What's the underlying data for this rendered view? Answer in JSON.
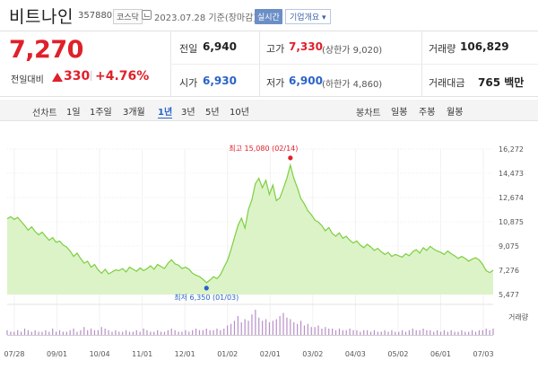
{
  "header": {
    "stock_name": "비트나인",
    "stock_code": "357880",
    "market": "코스닥",
    "date_text": "2023.07.28 기준(장마감)",
    "realtime_label": "실시간",
    "overview_label": "기업개요 ▾"
  },
  "price": {
    "current": "7,270",
    "change_label": "전일대비",
    "change_value": "330",
    "change_pct": "+4.76%"
  },
  "stats": {
    "prev_close_label": "전일",
    "prev_close": "6,940",
    "high_label": "고가",
    "high": "7,330",
    "upper_limit": "(상한가 9,020)",
    "volume_label": "거래량",
    "volume": "106,829",
    "open_label": "시가",
    "open": "6,930",
    "low_label": "저가",
    "low": "6,900",
    "lower_limit": "(하한가 4,860)",
    "value_label": "거래대금",
    "value": "765 백만"
  },
  "period_bar": {
    "line_chart_label": "선차트",
    "periods": [
      "1일",
      "1주일",
      "3개월",
      "1년",
      "3년",
      "5년",
      "10년"
    ],
    "active_period": "1년",
    "candle_label": "봉차트",
    "candles": [
      "일봉",
      "주봉",
      "월봉"
    ]
  },
  "colors": {
    "up": "#e0202a",
    "down": "#2a62c8",
    "line": "#7ccf3e",
    "fill": "#dcf3c8"
  },
  "chart_data": {
    "type": "area",
    "x_tick_labels": [
      "07/28",
      "09/01",
      "10/04",
      "11/01",
      "12/01",
      "01/02",
      "02/01",
      "03/02",
      "04/03",
      "05/02",
      "06/01",
      "07/03"
    ],
    "y_ticks": [
      16272,
      14473,
      12674,
      10875,
      9075,
      7276,
      5477
    ],
    "y_tick_labels": [
      "16,272",
      "14,473",
      "12,674",
      "10,875",
      "9,075",
      "7,276",
      "5,477"
    ],
    "ylim": [
      5477,
      16272
    ],
    "annotations": {
      "max_label": "최고 15,080 (02/14)",
      "min_label": "최저 6,350 (01/03)"
    },
    "max": {
      "date": "02/14",
      "value": 15080
    },
    "min": {
      "date": "01/03",
      "value": 6350
    },
    "volume_label": "거래량",
    "series": [
      {
        "values": [
          11100,
          11250,
          11050,
          11200,
          10900,
          10600,
          10250,
          10500,
          10150,
          9900,
          10100,
          9800,
          9500,
          9700,
          9350,
          9450,
          9150,
          9000,
          8700,
          8300,
          8550,
          8150,
          7800,
          7950,
          7500,
          7700,
          7300,
          7050,
          7350,
          7000,
          7150,
          7300,
          7250,
          7400,
          7150,
          7500,
          7350,
          7200,
          7450,
          7250,
          7400,
          7600,
          7350,
          7700,
          7550,
          7400,
          7800,
          8050,
          7750,
          7650,
          7400,
          7500,
          7350,
          7050,
          6900,
          6800,
          6600,
          6350,
          6550,
          6800,
          6650,
          6950,
          7500,
          8000,
          8800,
          9700,
          10600,
          11150,
          10400,
          11800,
          12500,
          13700,
          14100,
          13400,
          13950,
          12900,
          13600,
          12450,
          12650,
          13350,
          14100,
          15080,
          14100,
          13400,
          12600,
          12200,
          11700,
          11400,
          11000,
          10850,
          10600,
          10200,
          10450,
          10000,
          9800,
          10050,
          9650,
          9800,
          9500,
          9300,
          9450,
          9150,
          8950,
          9200,
          9000,
          8750,
          8900,
          8650,
          8450,
          8600,
          8300,
          8450,
          8350,
          8250,
          8500,
          8350,
          8650,
          8800,
          8550,
          8950,
          8750,
          9050,
          8850,
          8700,
          8600,
          8450,
          8700,
          8500,
          8350,
          8150,
          8300,
          8150,
          7950,
          8100,
          8200,
          8050,
          7700,
          7250,
          7100,
          7270
        ]
      }
    ],
    "volumes": [
      3,
      2,
      2,
      3,
      2,
      4,
      3,
      2,
      3,
      2,
      2,
      3,
      2,
      4,
      2,
      3,
      2,
      2,
      3,
      4,
      2,
      3,
      5,
      3,
      4,
      3,
      3,
      5,
      4,
      3,
      2,
      3,
      2,
      2,
      3,
      2,
      2,
      3,
      2,
      4,
      3,
      2,
      2,
      3,
      2,
      2,
      3,
      4,
      3,
      2,
      2,
      3,
      2,
      3,
      4,
      3,
      3,
      4,
      3,
      3,
      4,
      3,
      4,
      6,
      7,
      9,
      12,
      8,
      10,
      9,
      13,
      16,
      11,
      9,
      10,
      8,
      9,
      10,
      12,
      14,
      11,
      10,
      8,
      7,
      9,
      6,
      7,
      5,
      5,
      6,
      4,
      5,
      4,
      4,
      3,
      4,
      3,
      3,
      4,
      3,
      3,
      2,
      3,
      3,
      2,
      3,
      2,
      2,
      3,
      2,
      3,
      2,
      2,
      3,
      2,
      3,
      4,
      3,
      3,
      4,
      3,
      3,
      2,
      3,
      2,
      3,
      2,
      3,
      2,
      2,
      3,
      2,
      2,
      3,
      2,
      3,
      3,
      4,
      3,
      4
    ]
  }
}
